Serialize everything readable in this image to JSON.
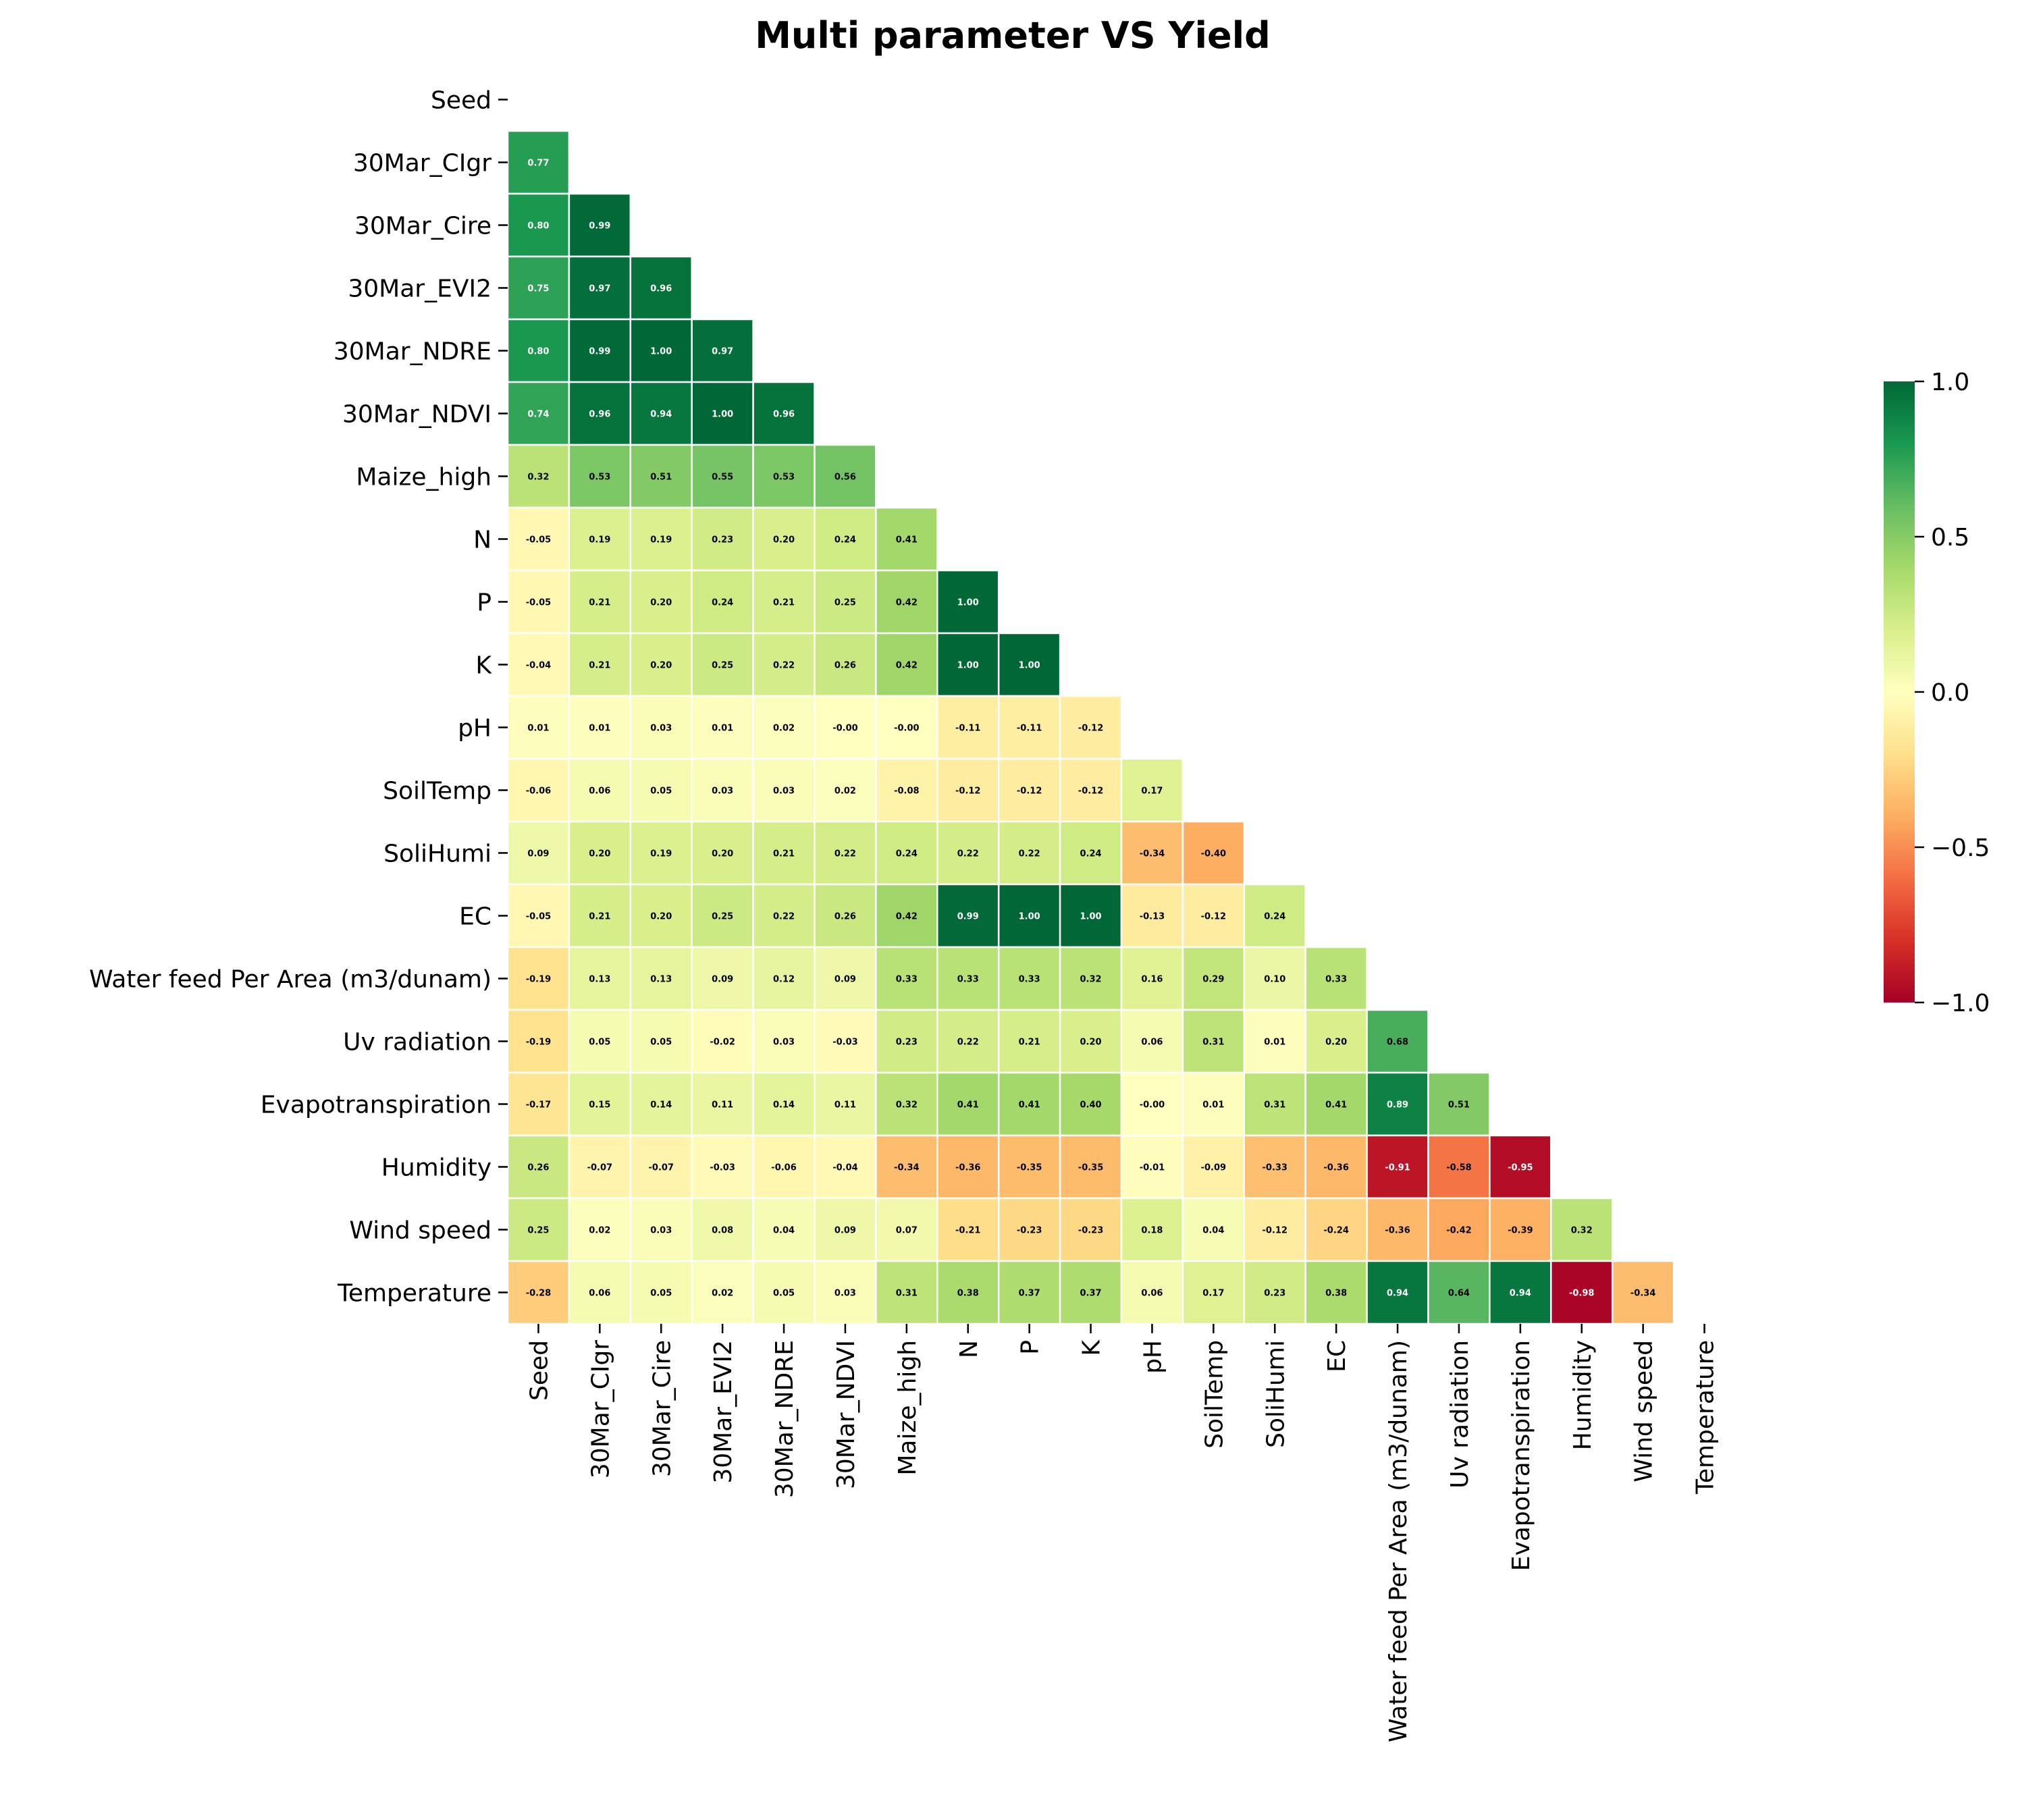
{
  "chart_data": {
    "type": "heatmap",
    "title": "Multi parameter VS Yield",
    "labels": [
      "Seed",
      "30Mar_CIgr",
      "30Mar_Cire",
      "30Mar_EVI2",
      "30Mar_NDRE",
      "30Mar_NDVI",
      "Maize_high",
      "N",
      "P",
      "K",
      "pH",
      "SoilTemp",
      "SoliHumi",
      "EC",
      "Water feed Per Area (m3/dunam)",
      "Uv radiation",
      "Evapotranspiration",
      "Humidity",
      "Wind speed",
      "Temperature"
    ],
    "matrix_lower": [
      [],
      [
        "0.77"
      ],
      [
        "0.80",
        "0.99"
      ],
      [
        "0.75",
        "0.97",
        "0.96"
      ],
      [
        "0.80",
        "0.99",
        "1.00",
        "0.97"
      ],
      [
        "0.74",
        "0.96",
        "0.94",
        "1.00",
        "0.96"
      ],
      [
        "0.32",
        "0.53",
        "0.51",
        "0.55",
        "0.53",
        "0.56"
      ],
      [
        "-0.05",
        "0.19",
        "0.19",
        "0.23",
        "0.20",
        "0.24",
        "0.41"
      ],
      [
        "-0.05",
        "0.21",
        "0.20",
        "0.24",
        "0.21",
        "0.25",
        "0.42",
        "1.00"
      ],
      [
        "-0.04",
        "0.21",
        "0.20",
        "0.25",
        "0.22",
        "0.26",
        "0.42",
        "1.00",
        "1.00"
      ],
      [
        "0.01",
        "0.01",
        "0.03",
        "0.01",
        "0.02",
        "-0.00",
        "-0.00",
        "-0.11",
        "-0.11",
        "-0.12"
      ],
      [
        "-0.06",
        "0.06",
        "0.05",
        "0.03",
        "0.03",
        "0.02",
        "-0.08",
        "-0.12",
        "-0.12",
        "-0.12",
        "0.17"
      ],
      [
        "0.09",
        "0.20",
        "0.19",
        "0.20",
        "0.21",
        "0.22",
        "0.24",
        "0.22",
        "0.22",
        "0.24",
        "-0.34",
        "-0.40"
      ],
      [
        "-0.05",
        "0.21",
        "0.20",
        "0.25",
        "0.22",
        "0.26",
        "0.42",
        "0.99",
        "1.00",
        "1.00",
        "-0.13",
        "-0.12",
        "0.24"
      ],
      [
        "-0.19",
        "0.13",
        "0.13",
        "0.09",
        "0.12",
        "0.09",
        "0.33",
        "0.33",
        "0.33",
        "0.32",
        "0.16",
        "0.29",
        "0.10",
        "0.33"
      ],
      [
        "-0.19",
        "0.05",
        "0.05",
        "-0.02",
        "0.03",
        "-0.03",
        "0.23",
        "0.22",
        "0.21",
        "0.20",
        "0.06",
        "0.31",
        "0.01",
        "0.20",
        "0.68"
      ],
      [
        "-0.17",
        "0.15",
        "0.14",
        "0.11",
        "0.14",
        "0.11",
        "0.32",
        "0.41",
        "0.41",
        "0.40",
        "-0.00",
        "0.01",
        "0.31",
        "0.41",
        "0.89",
        "0.51"
      ],
      [
        "0.26",
        "-0.07",
        "-0.07",
        "-0.03",
        "-0.06",
        "-0.04",
        "-0.34",
        "-0.36",
        "-0.35",
        "-0.35",
        "-0.01",
        "-0.09",
        "-0.33",
        "-0.36",
        "-0.91",
        "-0.58",
        "-0.95"
      ],
      [
        "0.25",
        "0.02",
        "0.03",
        "0.08",
        "0.04",
        "0.09",
        "0.07",
        "-0.21",
        "-0.23",
        "-0.23",
        "0.18",
        "0.04",
        "-0.12",
        "-0.24",
        "-0.36",
        "-0.42",
        "-0.39",
        "0.32"
      ],
      [
        "-0.28",
        "0.06",
        "0.05",
        "0.02",
        "0.05",
        "0.03",
        "0.31",
        "0.38",
        "0.37",
        "0.37",
        "0.06",
        "0.17",
        "0.23",
        "0.38",
        "0.94",
        "0.64",
        "0.94",
        "-0.98",
        "-0.34"
      ]
    ],
    "vmin": -1.0,
    "vmax": 1.0,
    "colormap": "RdYlGn",
    "colorbar_ticks": [
      "1.0",
      "0.5",
      "0.0",
      "−0.5",
      "−1.0"
    ],
    "mask": "upper-triangle-including-diagonal",
    "grid_line_color": "#ffffff"
  }
}
